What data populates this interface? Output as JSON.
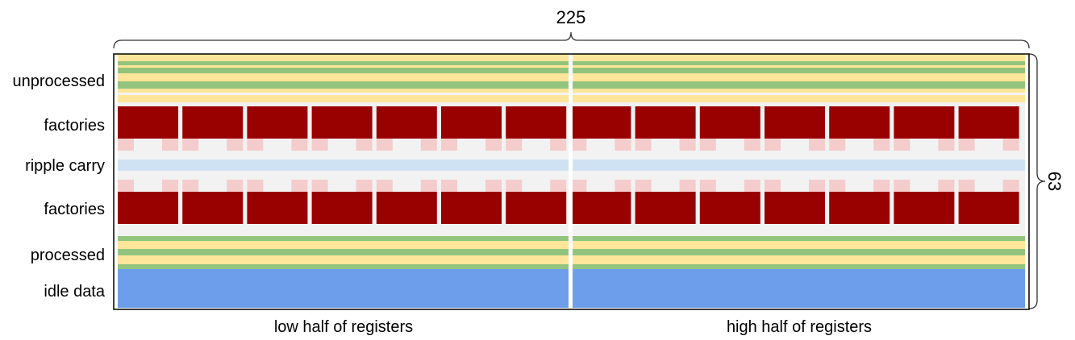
{
  "dimensions": {
    "width_label": "225",
    "height_label": "63"
  },
  "row_labels": {
    "unprocessed": "unprocessed",
    "factories_top": "factories",
    "ripple_carry": "ripple carry",
    "factories_bottom": "factories",
    "processed": "processed",
    "idle": "idle data"
  },
  "bottom_labels": {
    "low": "low half of registers",
    "high": "high half of registers"
  },
  "factory_count_per_row": 14,
  "colors": {
    "frame": "#000000",
    "background": "#f2f2f2",
    "divider": "#ffffff",
    "yellow_stripe": "#ffe599",
    "green_stripe": "#93c47d",
    "factory": "#990000",
    "factory_port": "#f4cccc",
    "ripple_carry": "#cfe2f3",
    "idle_data": "#6d9eeb",
    "bracket": "#333333"
  }
}
